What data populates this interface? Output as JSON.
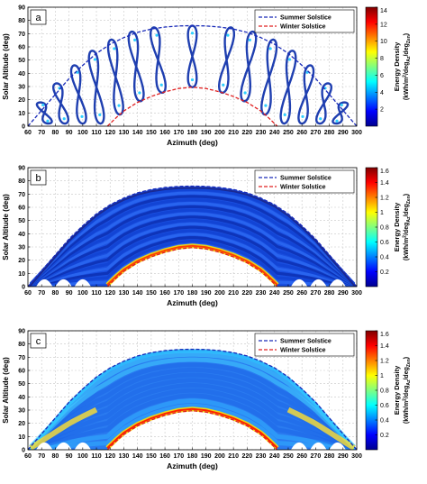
{
  "chart_data": [
    {
      "type": "heatmap",
      "panel_label": "a",
      "xlabel": "Azimuth (deg)",
      "ylabel": "Solar Altitude (deg)",
      "xlim": [
        60,
        300
      ],
      "ylim": [
        0,
        90
      ],
      "xticks": [
        60,
        70,
        80,
        90,
        100,
        110,
        120,
        130,
        140,
        150,
        160,
        170,
        180,
        190,
        200,
        210,
        220,
        230,
        240,
        250,
        260,
        270,
        280,
        290,
        300
      ],
      "yticks": [
        0,
        10,
        20,
        30,
        40,
        50,
        60,
        70,
        80,
        90
      ],
      "grid": true,
      "legend": {
        "placement": "top-right",
        "entries": [
          "Summer Solstice",
          "Winter Solstice"
        ]
      },
      "colorbar": {
        "label_main": "Energy Density",
        "label_units": "(kWh/m",
        "label_sup": "2",
        "label_mid": "/deg",
        "label_sub1": "Az",
        "label_mid2": "/deg",
        "label_sub2": "Zen",
        "label_end": ")",
        "range": [
          0,
          14
        ],
        "ticks": [
          "2",
          "4",
          "6",
          "8",
          "10",
          "12",
          "14"
        ],
        "tick_values": [
          2,
          4,
          6,
          8,
          10,
          12,
          14
        ]
      },
      "distribution": "figure-eight hourly analemma loops between the solstice curves"
    },
    {
      "type": "heatmap",
      "panel_label": "b",
      "xlabel": "Azimuth (deg)",
      "ylabel": "Solar Altitude (deg)",
      "xlim": [
        60,
        300
      ],
      "ylim": [
        0,
        90
      ],
      "xticks": [
        60,
        70,
        80,
        90,
        100,
        110,
        120,
        130,
        140,
        150,
        160,
        170,
        180,
        190,
        200,
        210,
        220,
        230,
        240,
        250,
        260,
        270,
        280,
        290,
        300
      ],
      "yticks": [
        0,
        10,
        20,
        30,
        40,
        50,
        60,
        70,
        80,
        90
      ],
      "grid": true,
      "legend": {
        "placement": "top-right",
        "entries": [
          "Summer Solstice",
          "Winter Solstice"
        ]
      },
      "colorbar": {
        "label_main": "Energy Density",
        "label_units": "(kWh/m",
        "label_sup": "2",
        "label_mid": "/deg",
        "label_sub1": "Az",
        "label_mid2": "/deg",
        "label_sub2": "Zen",
        "label_end": ")",
        "range": [
          0,
          1.6
        ],
        "ticks": [
          "0.2",
          "0.4",
          "0.6",
          "0.8",
          "1",
          "1.2",
          "1.4",
          "1.6"
        ],
        "tick_values": [
          0.2,
          0.4,
          0.6,
          0.8,
          1.0,
          1.2,
          1.4,
          1.6
        ]
      },
      "distribution": "banded arcs filling the region between the solstice curves"
    },
    {
      "type": "heatmap",
      "panel_label": "c",
      "xlabel": "Azimuth (deg)",
      "ylabel": "Solar Altitude (deg)",
      "xlim": [
        60,
        300
      ],
      "ylim": [
        0,
        90
      ],
      "xticks": [
        60,
        70,
        80,
        90,
        100,
        110,
        120,
        130,
        140,
        150,
        160,
        170,
        180,
        190,
        200,
        210,
        220,
        230,
        240,
        250,
        260,
        270,
        280,
        290,
        300
      ],
      "yticks": [
        0,
        10,
        20,
        30,
        40,
        50,
        60,
        70,
        80,
        90
      ],
      "grid": true,
      "legend": {
        "placement": "top-right",
        "entries": [
          "Summer Solstice",
          "Winter Solstice"
        ]
      },
      "colorbar": {
        "label_main": "Energy Density",
        "label_units": "(kWh/m",
        "label_sup": "2",
        "label_mid": "/deg",
        "label_sub1": "Az",
        "label_mid2": "/deg",
        "label_sub2": "Zen",
        "label_end": ")",
        "range": [
          0,
          1.6
        ],
        "ticks": [
          "0.2",
          "0.4",
          "0.6",
          "0.8",
          "1",
          "1.2",
          "1.4",
          "1.6"
        ],
        "tick_values": [
          0.2,
          0.4,
          0.6,
          0.8,
          1.0,
          1.2,
          1.4,
          1.6
        ]
      },
      "distribution": "smooth continuous field with high values along both solstice curves"
    }
  ],
  "curves": {
    "summer_solstice": {
      "color": "#1a2bb8",
      "points": [
        [
          60,
          0
        ],
        [
          70,
          12
        ],
        [
          80,
          24
        ],
        [
          90,
          36
        ],
        [
          100,
          46
        ],
        [
          110,
          55
        ],
        [
          120,
          62
        ],
        [
          130,
          67
        ],
        [
          140,
          71
        ],
        [
          150,
          73.5
        ],
        [
          160,
          75
        ],
        [
          170,
          75.8
        ],
        [
          180,
          76
        ],
        [
          190,
          75.8
        ],
        [
          200,
          75
        ],
        [
          210,
          73.5
        ],
        [
          220,
          71
        ],
        [
          230,
          67
        ],
        [
          240,
          62
        ],
        [
          250,
          55
        ],
        [
          260,
          46
        ],
        [
          270,
          36
        ],
        [
          280,
          24
        ],
        [
          290,
          12
        ],
        [
          300,
          0
        ]
      ]
    },
    "winter_solstice": {
      "color": "#e02020",
      "points": [
        [
          118,
          0
        ],
        [
          125,
          7
        ],
        [
          130,
          11.5
        ],
        [
          140,
          18
        ],
        [
          150,
          22.5
        ],
        [
          160,
          26
        ],
        [
          170,
          28.5
        ],
        [
          180,
          29.5
        ],
        [
          190,
          28.5
        ],
        [
          200,
          26
        ],
        [
          210,
          22.5
        ],
        [
          220,
          18
        ],
        [
          230,
          11.5
        ],
        [
          235,
          7
        ],
        [
          242,
          0
        ]
      ]
    }
  },
  "colormap": [
    "#00008f",
    "#0000ff",
    "#0080ff",
    "#00ffff",
    "#80ff80",
    "#ffff00",
    "#ff8000",
    "#ff0000",
    "#800000"
  ]
}
